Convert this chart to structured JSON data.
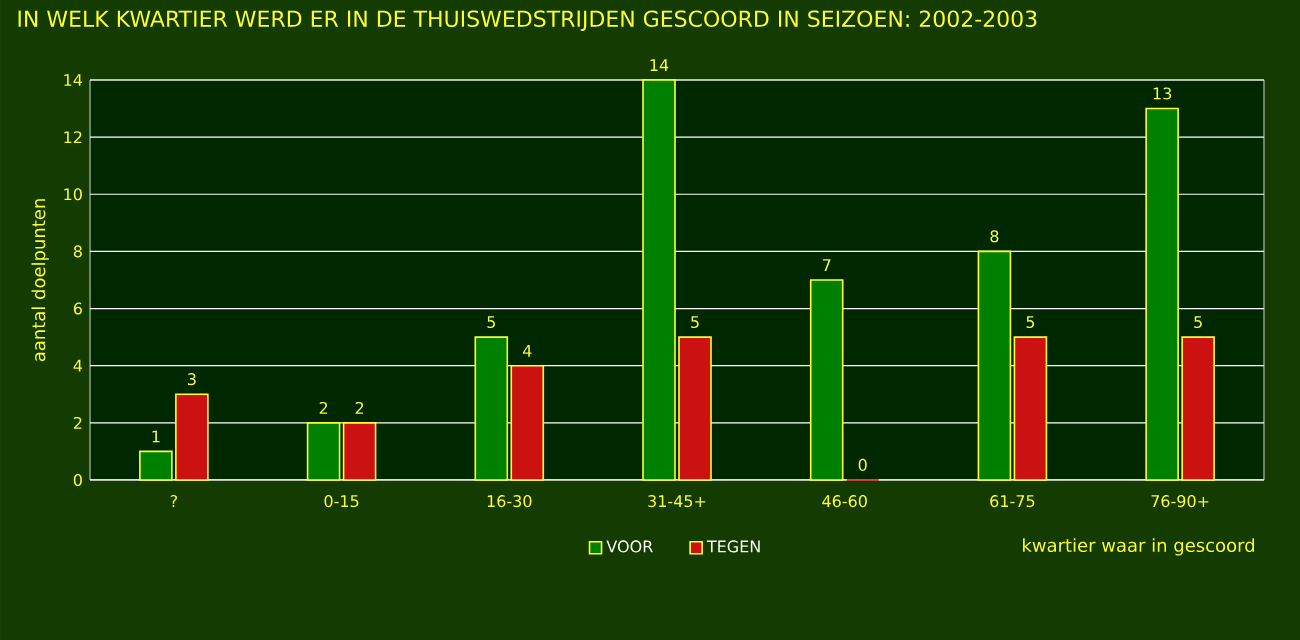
{
  "chart_data": {
    "type": "bar",
    "title": "IN WELK KWARTIER WERD ER IN DE THUISWEDSTRIJDEN GESCOORD IN SEIZOEN: 2002-2003",
    "xlabel": "kwartier waar in gescoord",
    "ylabel": "aantal doelpunten",
    "categories": [
      "?",
      "0-15",
      "16-30",
      "31-45+",
      "46-60",
      "61-75",
      "76-90+"
    ],
    "series": [
      {
        "name": "VOOR",
        "color": "#008000",
        "values": [
          1,
          2,
          5,
          14,
          7,
          8,
          13
        ]
      },
      {
        "name": "TEGEN",
        "color": "#cc1111",
        "values": [
          3,
          2,
          4,
          5,
          0,
          5,
          5
        ]
      }
    ],
    "ylim": [
      0,
      14
    ],
    "yticks": [
      0,
      2,
      4,
      6,
      8,
      10,
      12,
      14
    ],
    "grid": "y",
    "legend": "bottom",
    "data_labels": true
  }
}
